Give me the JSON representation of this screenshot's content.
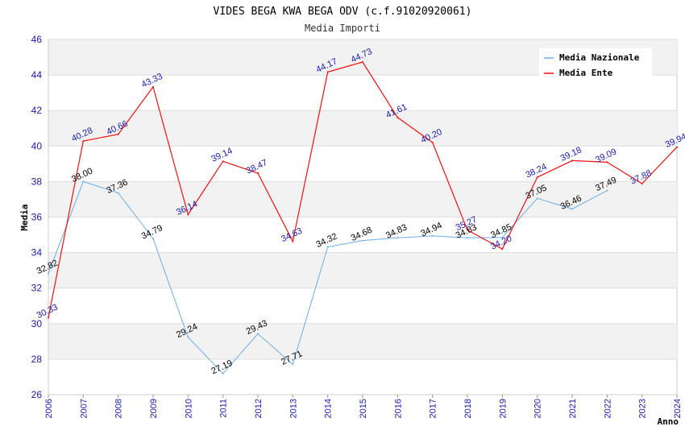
{
  "chart_data": {
    "type": "line",
    "title": "VIDES BEGA KWA BEGA ODV (c.f.91020920061)",
    "subtitle": "Media Importi",
    "xlabel": "Anno",
    "ylabel": "Media",
    "ylim": [
      26,
      46
    ],
    "yticks": [
      "26",
      "28",
      "30",
      "32",
      "34",
      "36",
      "38",
      "40",
      "42",
      "44",
      "46"
    ],
    "categories": [
      "2006",
      "2007",
      "2008",
      "2009",
      "2010",
      "2011",
      "2012",
      "2013",
      "2014",
      "2015",
      "2016",
      "2017",
      "2018",
      "2019",
      "2020",
      "2021",
      "2022",
      "2023",
      "2024"
    ],
    "grid": "horizontal bands",
    "legend_position": "top-right",
    "series": [
      {
        "name": "Media Nazionale",
        "color": "#6aaee6",
        "label_color": "#000000",
        "values": [
          32.82,
          38.0,
          37.36,
          34.79,
          29.24,
          27.19,
          29.43,
          27.71,
          34.32,
          34.68,
          34.83,
          34.94,
          34.83,
          34.85,
          37.05,
          36.46,
          37.49,
          null,
          null
        ],
        "labels": [
          "32.82",
          "38.00",
          "37.36",
          "34.79",
          "29.24",
          "27.19",
          "29.43",
          "27.71",
          "34.32",
          "34.68",
          "34.83",
          "34.94",
          "34.83",
          "34.85",
          "37.05",
          "36.46",
          "37.49",
          null,
          null
        ]
      },
      {
        "name": "Media Ente",
        "color": "#ee1111",
        "label_color": "#1a1aa6",
        "values": [
          30.33,
          40.28,
          40.66,
          43.33,
          36.14,
          39.14,
          38.47,
          34.63,
          44.17,
          44.73,
          41.61,
          40.2,
          35.27,
          34.2,
          38.24,
          39.18,
          39.09,
          37.88,
          39.94
        ],
        "labels": [
          "30.33",
          "40.28",
          "40.66",
          "43.33",
          "36.14",
          "39.14",
          "38.47",
          "34.63",
          "44.17",
          "44.73",
          "41.61",
          "40.20",
          "35.27",
          "34.20",
          "38.24",
          "39.18",
          "39.09",
          "37.88",
          "39.94"
        ]
      }
    ]
  }
}
